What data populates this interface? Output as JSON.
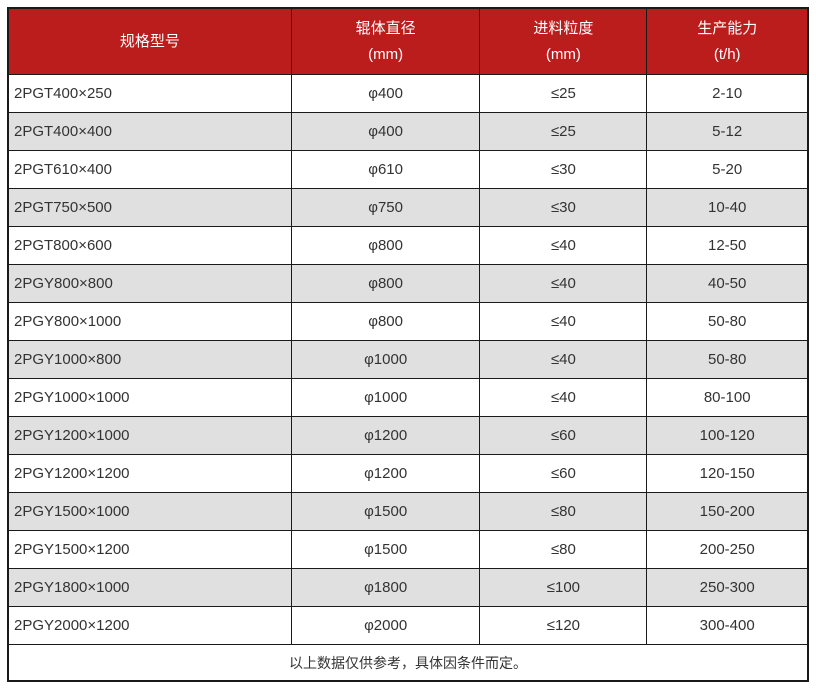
{
  "colors": {
    "header_bg": "#bb1d1d",
    "header_text": "#ffffff",
    "row_bg": "#ffffff",
    "row_alt_bg": "#e0e0e0",
    "border": "#1a1a1a",
    "text": "#333333"
  },
  "chart_data": {
    "type": "table",
    "columns": [
      {
        "label": "规格型号",
        "unit": ""
      },
      {
        "label": "辊体直径",
        "unit": "(mm)"
      },
      {
        "label": "进料粒度",
        "unit": "(mm)"
      },
      {
        "label": "生产能力",
        "unit": "(t/h)"
      }
    ],
    "rows": [
      [
        "2PGT400×250",
        "φ400",
        "≤25",
        "2-10"
      ],
      [
        "2PGT400×400",
        "φ400",
        "≤25",
        "5-12"
      ],
      [
        "2PGT610×400",
        "φ610",
        "≤30",
        "5-20"
      ],
      [
        "2PGT750×500",
        "φ750",
        "≤30",
        "10-40"
      ],
      [
        "2PGT800×600",
        "φ800",
        "≤40",
        "12-50"
      ],
      [
        "2PGY800×800",
        "φ800",
        "≤40",
        "40-50"
      ],
      [
        "2PGY800×1000",
        "φ800",
        "≤40",
        "50-80"
      ],
      [
        "2PGY1000×800",
        "φ1000",
        "≤40",
        "50-80"
      ],
      [
        "2PGY1000×1000",
        "φ1000",
        "≤40",
        "80-100"
      ],
      [
        "2PGY1200×1000",
        "φ1200",
        "≤60",
        "100-120"
      ],
      [
        "2PGY1200×1200",
        "φ1200",
        "≤60",
        "120-150"
      ],
      [
        "2PGY1500×1000",
        "φ1500",
        "≤80",
        "150-200"
      ],
      [
        "2PGY1500×1200",
        "φ1500",
        "≤80",
        "200-250"
      ],
      [
        "2PGY1800×1000",
        "φ1800",
        "≤100",
        "250-300"
      ],
      [
        "2PGY2000×1200",
        "φ2000",
        "≤120",
        "300-400"
      ]
    ],
    "footnote": "以上数据仅供参考，具体因条件而定。",
    "layout_hints": {
      "grid": true,
      "alternating_rows": true,
      "legend": "none"
    }
  }
}
